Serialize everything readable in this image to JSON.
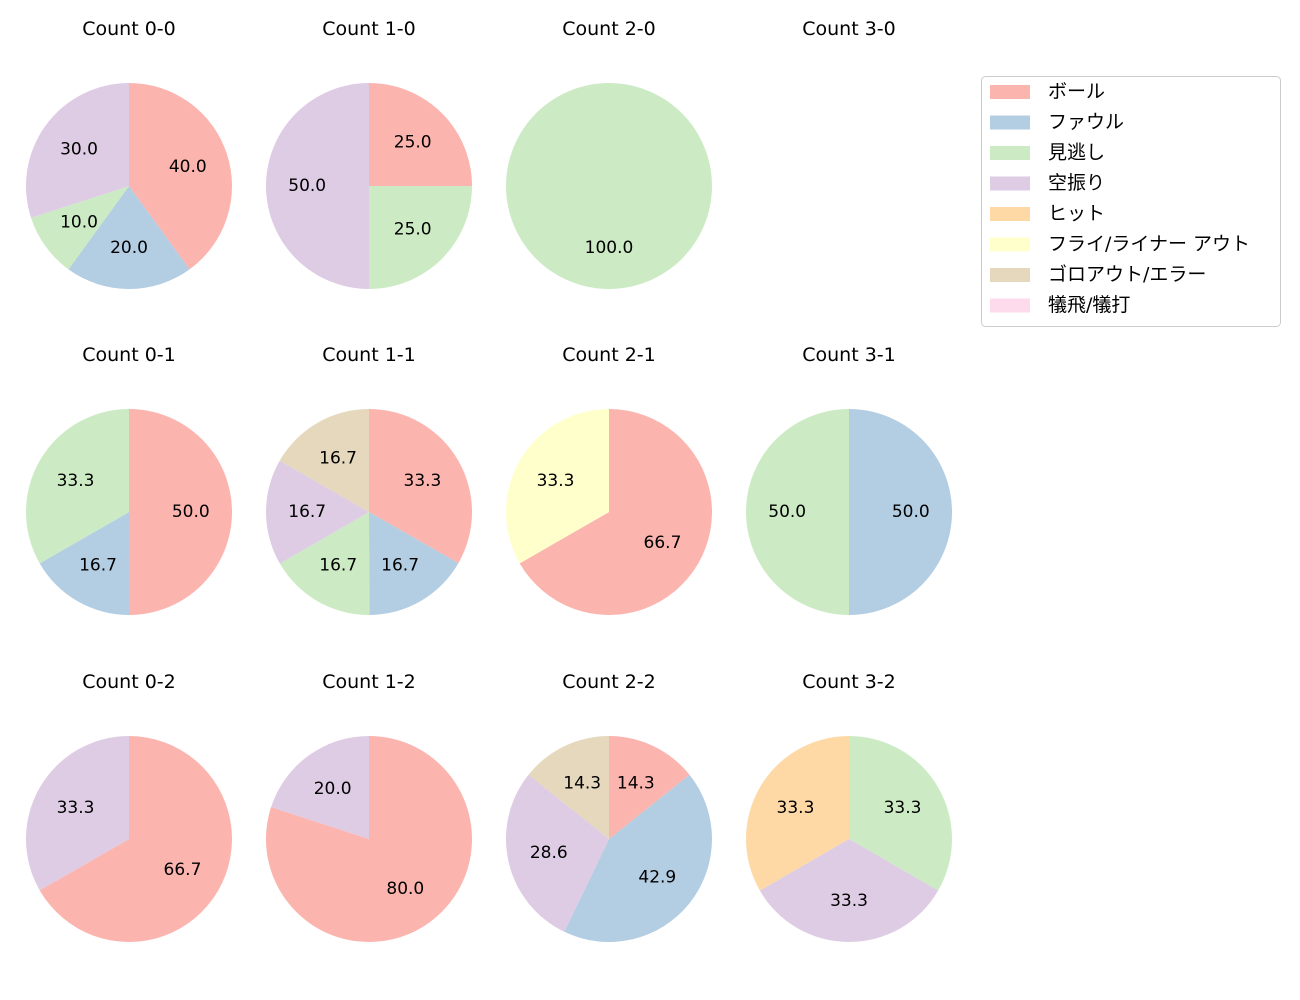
{
  "chart_data": {
    "type": "pie",
    "start_angle": 90,
    "direction": "clockwise",
    "categories": [
      "ボール",
      "ファウル",
      "見逃し",
      "空振り",
      "ヒット",
      "フライ/ライナー アウト",
      "ゴロアウト/エラー",
      "犠飛/犠打"
    ],
    "colors": [
      "#fbb4ae",
      "#b3cde3",
      "#ccebc5",
      "#decbe4",
      "#fed9a6",
      "#ffffcc",
      "#e5d8bd",
      "#fddaec"
    ],
    "legend_position": "right",
    "charts": [
      {
        "title": "Count 0-0",
        "values": [
          40,
          20,
          10,
          30,
          0,
          0,
          0,
          0
        ]
      },
      {
        "title": "Count 1-0",
        "values": [
          25,
          0,
          25,
          50,
          0,
          0,
          0,
          0
        ]
      },
      {
        "title": "Count 2-0",
        "values": [
          0,
          0,
          100,
          0,
          0,
          0,
          0,
          0
        ]
      },
      {
        "title": "Count 3-0",
        "values": [
          0,
          0,
          0,
          0,
          0,
          0,
          0,
          0
        ]
      },
      {
        "title": "Count 0-1",
        "values": [
          50,
          16.7,
          33.3,
          0,
          0,
          0,
          0,
          0
        ]
      },
      {
        "title": "Count 1-1",
        "values": [
          33.3,
          16.7,
          16.7,
          16.7,
          0,
          0,
          16.7,
          0
        ]
      },
      {
        "title": "Count 2-1",
        "values": [
          66.7,
          0,
          0,
          0,
          0,
          33.3,
          0,
          0
        ]
      },
      {
        "title": "Count 3-1",
        "values": [
          0,
          50,
          50,
          0,
          0,
          0,
          0,
          0
        ]
      },
      {
        "title": "Count 0-2",
        "values": [
          66.7,
          0,
          0,
          33.3,
          0,
          0,
          0,
          0
        ]
      },
      {
        "title": "Count 1-2",
        "values": [
          80,
          0,
          0,
          20,
          0,
          0,
          0,
          0
        ]
      },
      {
        "title": "Count 2-2",
        "values": [
          14.3,
          42.9,
          0,
          28.6,
          0,
          0,
          14.3,
          0
        ]
      },
      {
        "title": "Count 3-2",
        "values": [
          0,
          0,
          33.3,
          33.3,
          33.3,
          0,
          0,
          0
        ]
      }
    ]
  }
}
